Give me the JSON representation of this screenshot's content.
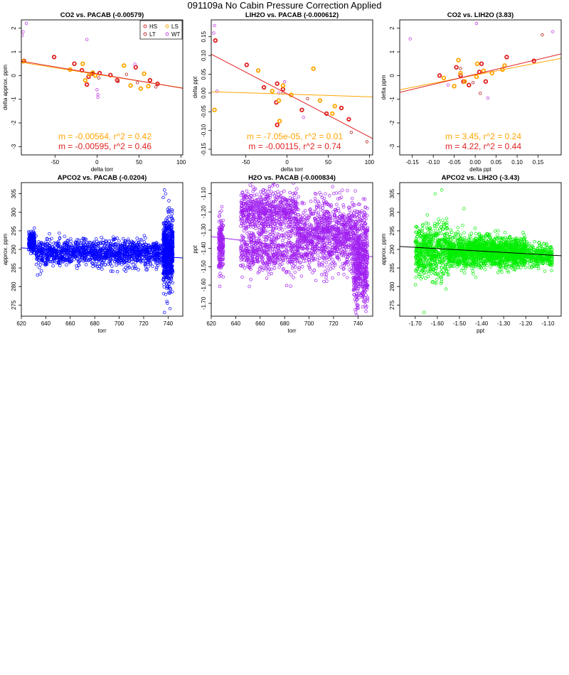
{
  "page": {
    "title": "091109a   No Cabin Pressure Correction Applied"
  },
  "colors": {
    "HS": "#e02020",
    "LS": "#ffa500",
    "LT": "#b22222",
    "WT": "#c040e0",
    "blue": "#0000ff",
    "purple": "#a020f0",
    "green": "#00ee00"
  },
  "chart_data": [
    {
      "id": "p1",
      "type": "scatter",
      "title": "CO2 vs. PACAB (-0.00579)",
      "xlabel": "delta torr",
      "ylabel": "delta approx. ppm",
      "xlim": [
        -90,
        102
      ],
      "ylim": [
        -3.35,
        2.35
      ],
      "xticks": [
        -50,
        0,
        50,
        100
      ],
      "yticks": [
        -3,
        -2,
        -1,
        0,
        1,
        2
      ],
      "legend": {
        "placement": "top-right",
        "entries": [
          "HS",
          "LS",
          "LT",
          "WT"
        ]
      },
      "series": [
        {
          "name": "HS",
          "thick": true,
          "points": [
            [
              -87,
              0.62
            ],
            [
              -51,
              0.78
            ],
            [
              -27,
              0.5
            ],
            [
              -18,
              0.22
            ],
            [
              -12,
              -0.38
            ],
            [
              -10,
              -0.05
            ],
            [
              -6,
              0.08
            ],
            [
              3,
              0.1
            ],
            [
              16,
              0.02
            ],
            [
              24,
              -0.2
            ],
            [
              46,
              0.35
            ],
            [
              63,
              -0.2
            ],
            [
              72,
              -0.35
            ]
          ]
        },
        {
          "name": "LS",
          "thick": true,
          "points": [
            [
              -88,
              0.6
            ],
            [
              -32,
              0.25
            ],
            [
              -17,
              0.5
            ],
            [
              -14,
              -0.2
            ],
            [
              -9,
              0.05
            ],
            [
              -5,
              0.12
            ],
            [
              -2,
              0.0
            ],
            [
              32,
              0.42
            ],
            [
              40,
              -0.42
            ],
            [
              52,
              -0.55
            ],
            [
              56,
              0.08
            ],
            [
              61,
              -0.45
            ]
          ]
        },
        {
          "name": "LT",
          "thick": false,
          "points": [
            [
              -5,
              0.1
            ],
            [
              2,
              -0.1
            ],
            [
              25,
              -0.25
            ],
            [
              35,
              0.05
            ],
            [
              48,
              -0.3
            ],
            [
              70,
              -0.48
            ]
          ]
        },
        {
          "name": "WT",
          "thick": false,
          "points": [
            [
              -89,
              1.7
            ],
            [
              -88,
              1.85
            ],
            [
              -84,
              2.2
            ],
            [
              -12,
              1.52
            ],
            [
              0,
              -0.6
            ],
            [
              1,
              -0.8
            ],
            [
              1,
              -0.92
            ],
            [
              45,
              0.48
            ],
            [
              97,
              -3.45
            ]
          ]
        }
      ],
      "fits": [
        {
          "color": "LS",
          "slope": -0.00564,
          "intercept": 0.05
        },
        {
          "color": "HS",
          "slope": -0.00595,
          "intercept": 0.07
        }
      ],
      "annotations": [
        {
          "text": "m = -0.00564, r^2 = 0.42",
          "color": "LS"
        },
        {
          "text": "m = -0.00595, r^2 = 0.46",
          "color": "HS"
        }
      ]
    },
    {
      "id": "p2",
      "type": "scatter",
      "title": "LIH2O vs. PACAB (-0.000612)",
      "xlabel": "delta torr",
      "ylabel": "delta ppt",
      "xlim": [
        -92,
        104
      ],
      "ylim": [
        -0.165,
        0.195
      ],
      "xticks": [
        -50,
        0,
        50,
        100
      ],
      "yticks": [
        -0.15,
        -0.1,
        -0.05,
        0.0,
        0.05,
        0.1,
        0.15
      ],
      "legend": null,
      "series": [
        {
          "name": "HS",
          "thick": true,
          "points": [
            [
              -87,
              0.14
            ],
            [
              -49,
              0.075
            ],
            [
              -28,
              0.015
            ],
            [
              -12,
              0.025
            ],
            [
              -5,
              0.01
            ],
            [
              -13,
              -0.025
            ],
            [
              -12,
              -0.085
            ],
            [
              18,
              -0.045
            ],
            [
              48,
              -0.055
            ],
            [
              66,
              -0.04
            ],
            [
              75,
              -0.07
            ]
          ]
        },
        {
          "name": "LS",
          "thick": true,
          "points": [
            [
              -88,
              -0.045
            ],
            [
              -35,
              0.06
            ],
            [
              -18,
              0.005
            ],
            [
              -10,
              -0.02
            ],
            [
              -9,
              -0.075
            ],
            [
              -5,
              0.02
            ],
            [
              5,
              -0.005
            ],
            [
              32,
              0.065
            ],
            [
              40,
              -0.02
            ],
            [
              55,
              -0.055
            ],
            [
              58,
              -0.035
            ]
          ]
        },
        {
          "name": "LT",
          "thick": false,
          "points": [
            [
              -5,
              0.0
            ],
            [
              25,
              -0.015
            ],
            [
              78,
              -0.105
            ],
            [
              97,
              -0.13
            ]
          ]
        },
        {
          "name": "WT",
          "thick": false,
          "points": [
            [
              -89,
              0.16
            ],
            [
              -88,
              0.18
            ],
            [
              -85,
              0.005
            ],
            [
              -10,
              0.0
            ],
            [
              -3,
              0.03
            ],
            [
              20,
              -0.065
            ]
          ]
        }
      ],
      "fits": [
        {
          "color": "LS",
          "slope": -7.05e-05,
          "intercept": -0.003
        },
        {
          "color": "HS",
          "slope": -0.00115,
          "intercept": -0.002
        }
      ],
      "annotations": [
        {
          "text": "m = -7.05e-05, r^2 = 0.01",
          "color": "LS"
        },
        {
          "text": "m = -0.00115, r^2 = 0.74",
          "color": "HS"
        }
      ]
    },
    {
      "id": "p3",
      "type": "scatter",
      "title": "CO2 vs. LIH2O (3.83)",
      "xlabel": "delta ppt",
      "ylabel": "delta ppm",
      "xlim": [
        -0.18,
        0.205
      ],
      "ylim": [
        -3.35,
        2.35
      ],
      "xticks": [
        -0.15,
        -0.1,
        -0.05,
        0.0,
        0.05,
        0.1,
        0.15
      ],
      "yticks": [
        -3,
        -2,
        -1,
        0,
        1,
        2
      ],
      "legend": null,
      "series": [
        {
          "name": "HS",
          "thick": true,
          "points": [
            [
              -0.085,
              0.0
            ],
            [
              -0.045,
              0.35
            ],
            [
              -0.035,
              0.0
            ],
            [
              -0.028,
              -0.25
            ],
            [
              -0.015,
              -0.4
            ],
            [
              0.01,
              0.15
            ],
            [
              0.015,
              0.5
            ],
            [
              0.025,
              -0.25
            ],
            [
              0.075,
              0.78
            ],
            [
              0.14,
              0.62
            ]
          ]
        },
        {
          "name": "LS",
          "thick": true,
          "points": [
            [
              -0.075,
              -0.1
            ],
            [
              -0.05,
              -0.45
            ],
            [
              -0.04,
              0.65
            ],
            [
              -0.035,
              0.1
            ],
            [
              -0.025,
              -0.25
            ],
            [
              0.003,
              -0.05
            ],
            [
              0.005,
              0.5
            ],
            [
              0.02,
              0.2
            ],
            [
              0.04,
              0.1
            ],
            [
              0.065,
              0.25
            ],
            [
              0.07,
              0.42
            ]
          ]
        },
        {
          "name": "LT",
          "thick": false,
          "points": [
            [
              -0.035,
              0.3
            ],
            [
              -0.005,
              -0.3
            ],
            [
              0.012,
              -0.75
            ],
            [
              0.16,
              1.72
            ]
          ]
        },
        {
          "name": "WT",
          "thick": false,
          "points": [
            [
              -0.155,
              1.55
            ],
            [
              -0.065,
              -0.4
            ],
            [
              0.003,
              2.2
            ],
            [
              0.03,
              -0.95
            ],
            [
              0.185,
              1.85
            ]
          ]
        }
      ],
      "fits": [
        {
          "color": "LS",
          "slope": 3.45,
          "intercept": 0.02
        },
        {
          "color": "HS",
          "slope": 4.22,
          "intercept": 0.05
        }
      ],
      "annotations": [
        {
          "text": "m = 3.45, r^2 = 0.24",
          "color": "LS"
        },
        {
          "text": "m = 4.22, r^2 = 0.44",
          "color": "HS"
        }
      ]
    },
    {
      "id": "p4",
      "type": "scatter",
      "title": "APCO2 vs. PACAB (-0.0204)",
      "xlabel": "torr",
      "ylabel": "approx. ppm",
      "xlim": [
        620,
        752
      ],
      "ylim": [
        272,
        308
      ],
      "xticks": [
        620,
        640,
        660,
        680,
        700,
        720,
        740
      ],
      "yticks": [
        275,
        280,
        285,
        290,
        295,
        300,
        305
      ],
      "color": "blue",
      "clusters": [
        {
          "x": [
            626,
            631
          ],
          "mean": 292,
          "sd": 1.3,
          "n": 220
        },
        {
          "x": [
            632,
            736
          ],
          "mean": 289,
          "sd": 1.7,
          "n": 1350
        },
        {
          "x": [
            736,
            744
          ],
          "mean": 289,
          "sd": 4.5,
          "n": 650
        }
      ],
      "extras": [
        [
          736,
          304
        ],
        [
          737,
          306
        ],
        [
          738,
          305
        ],
        [
          737,
          273
        ],
        [
          739,
          276
        ]
      ],
      "fits": [
        {
          "color": "blue",
          "slope": -0.0204,
          "intercept_at": [
            620,
            290.4
          ]
        }
      ]
    },
    {
      "id": "p5",
      "type": "scatter",
      "title": "H2O vs. PACAB (-0.000834)",
      "xlabel": "torr",
      "ylabel": "ppt",
      "xlim": [
        620,
        752
      ],
      "ylim": [
        -1.77,
        -1.04
      ],
      "xticks": [
        620,
        640,
        660,
        680,
        700,
        720,
        740
      ],
      "yticks": [
        -1.7,
        -1.6,
        -1.5,
        -1.4,
        -1.3,
        -1.2,
        -1.1
      ],
      "color": "purple",
      "clusters": [
        {
          "x": [
            626,
            630
          ],
          "mean": -1.37,
          "sd": 0.07,
          "n": 200
        },
        {
          "x": [
            644,
            690
          ],
          "mean": -1.2,
          "sd": 0.06,
          "n": 700
        },
        {
          "x": [
            644,
            690
          ],
          "mean": -1.42,
          "sd": 0.06,
          "n": 500
        },
        {
          "x": [
            690,
            736
          ],
          "mean": -1.33,
          "sd": 0.09,
          "n": 1000
        },
        {
          "x": [
            736,
            748
          ],
          "mean": -1.45,
          "sd": 0.13,
          "n": 600
        }
      ],
      "extras": [
        [
          739,
          -1.73
        ],
        [
          740,
          -1.71
        ],
        [
          738,
          -1.69
        ]
      ],
      "fits": [
        {
          "color": "purple",
          "slope": -0.000834,
          "intercept_at": [
            620,
            -1.335
          ]
        }
      ]
    },
    {
      "id": "p6",
      "type": "scatter",
      "title": "APCO2 vs. LIH2O (-3.43)",
      "xlabel": "ppt",
      "ylabel": "approx. ppm",
      "xlim": [
        -1.77,
        -1.04
      ],
      "ylim": [
        272,
        308
      ],
      "xticks": [
        -1.7,
        -1.6,
        -1.5,
        -1.4,
        -1.3,
        -1.2,
        -1.1
      ],
      "yticks": [
        275,
        280,
        285,
        290,
        295,
        300,
        305
      ],
      "color": "green",
      "clusters": [
        {
          "x": [
            -1.7,
            -1.55
          ],
          "mean": 289.5,
          "sd": 3.5,
          "n": 600
        },
        {
          "x": [
            -1.55,
            -1.2
          ],
          "mean": 289.3,
          "sd": 2.0,
          "n": 1700
        },
        {
          "x": [
            -1.2,
            -1.08
          ],
          "mean": 288.2,
          "sd": 1.4,
          "n": 300
        }
      ],
      "extras": [
        [
          -1.66,
          273
        ],
        [
          -1.61,
          305
        ],
        [
          -1.58,
          306
        ],
        [
          -1.48,
          301
        ]
      ],
      "fits": [
        {
          "color": "black",
          "slope": -3.43,
          "intercept_at": [
            -1.77,
            290.8
          ]
        }
      ]
    }
  ]
}
